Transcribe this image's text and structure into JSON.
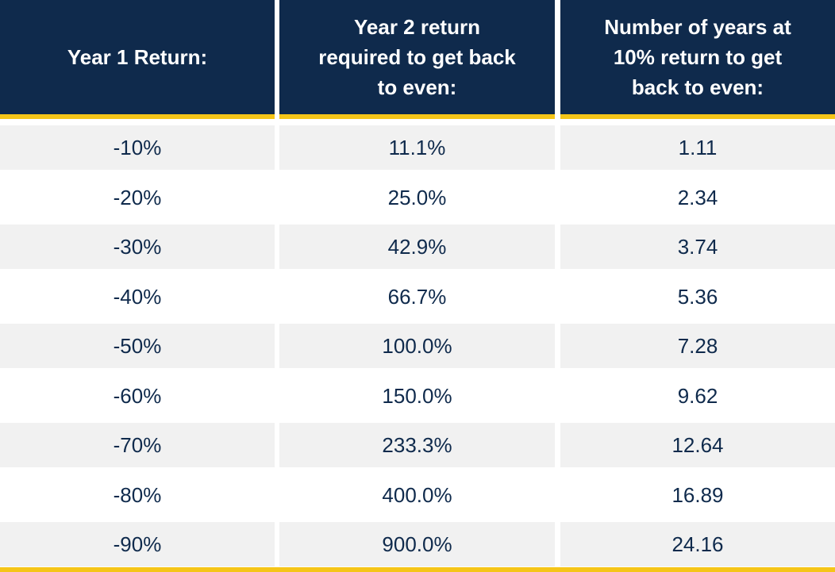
{
  "chart_data": {
    "type": "table",
    "columns": [
      [
        "Year 1 Return:"
      ],
      [
        "Year 2 return",
        "required to get back",
        "to even:"
      ],
      [
        "Number of years at",
        "10% return to get",
        "back to even:"
      ]
    ],
    "rows": [
      [
        "-10%",
        "11.1%",
        "1.11"
      ],
      [
        "-20%",
        "25.0%",
        "2.34"
      ],
      [
        "-30%",
        "42.9%",
        "3.74"
      ],
      [
        "-40%",
        "66.7%",
        "5.36"
      ],
      [
        "-50%",
        "100.0%",
        "7.28"
      ],
      [
        "-60%",
        "150.0%",
        "9.62"
      ],
      [
        "-70%",
        "233.3%",
        "12.64"
      ],
      [
        "-80%",
        "400.0%",
        "16.89"
      ],
      [
        "-90%",
        "900.0%",
        "24.16"
      ]
    ]
  },
  "colors": {
    "header_bg": "#0f2a4c",
    "header_text": "#ffffff",
    "accent_rule": "#f5c518",
    "shaded_row": "#f1f1f1",
    "body_text": "#0f2a4c"
  }
}
